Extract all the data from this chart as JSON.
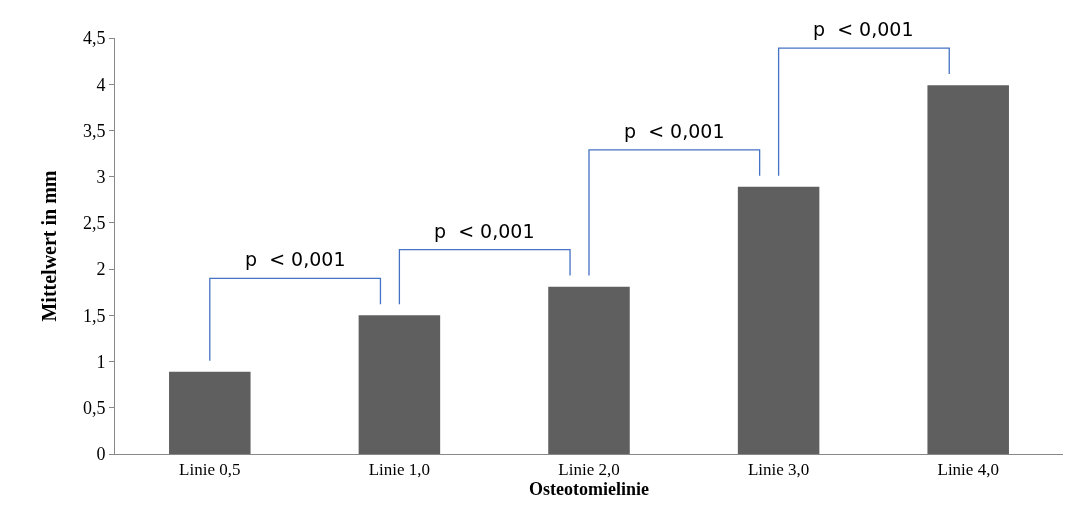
{
  "chart_data": {
    "type": "bar",
    "xlabel": "Osteotomielinie",
    "ylabel": "Mittelwert in mm",
    "categories": [
      "Linie 0,5",
      "Linie 1,0",
      "Linie 2,0",
      "Linie 3,0",
      "Linie 4,0"
    ],
    "values": [
      0.89,
      1.5,
      1.81,
      2.89,
      3.99
    ],
    "color": "#5f5f5f",
    "ylim": [
      0,
      4.5
    ],
    "yticks": [
      0,
      {
        "value": 0.5,
        "label": "0,5"
      },
      1,
      {
        "value": 1.5,
        "label": "1,5"
      },
      2,
      {
        "value": 2.5,
        "label": "2,5"
      },
      3,
      {
        "value": 3.5,
        "label": "3,5"
      },
      4,
      {
        "value": 4.5,
        "label": "4,5"
      }
    ],
    "grid": false,
    "annotations": [
      "p  < 0,001",
      "p  < 0,001",
      "p  < 0,001",
      "p  < 0,001"
    ]
  }
}
